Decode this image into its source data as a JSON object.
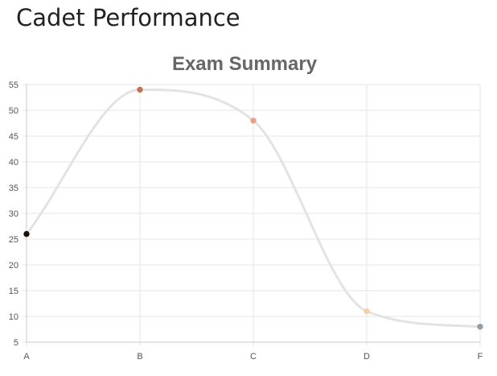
{
  "page": {
    "heading": "Cadet Performance"
  },
  "chart_data": {
    "type": "line",
    "title": "Exam Summary",
    "categories": [
      "A",
      "B",
      "C",
      "D",
      "F"
    ],
    "series": [
      {
        "values": [
          26,
          54,
          48,
          11,
          8
        ],
        "line_color": "#e3e3e3",
        "point_colors": [
          "#1a1109",
          "#c07356",
          "#e8a383",
          "#f3d0a7",
          "#8e9eab"
        ]
      }
    ],
    "ylim": [
      5,
      55
    ],
    "yticks": [
      5,
      10,
      15,
      20,
      25,
      30,
      35,
      40,
      45,
      50,
      55
    ],
    "xlabel": "",
    "ylabel": "",
    "grid": true,
    "legend": "none",
    "smooth": true
  }
}
